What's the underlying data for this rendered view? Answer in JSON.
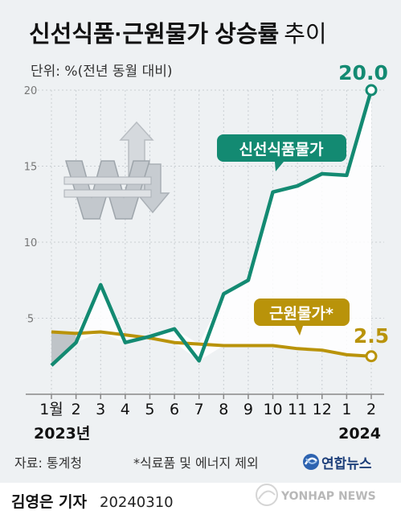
{
  "chart_data": {
    "type": "line",
    "title_main": "신선식품·근원물가 상승률",
    "title_sub": "추이",
    "unit": "단위: %(전년 동월 대비)",
    "categories": [
      "1월",
      "2",
      "3",
      "4",
      "5",
      "6",
      "7",
      "8",
      "9",
      "10",
      "11",
      "12",
      "1",
      "2"
    ],
    "year_labels": [
      "2023년",
      "2024"
    ],
    "ylim": [
      0,
      20
    ],
    "yticks": [
      "20",
      "15",
      "10",
      "5"
    ],
    "series": [
      {
        "name": "신선식품물가",
        "color": "#138a72",
        "end_label": "20.0",
        "values": [
          1.9,
          3.4,
          7.2,
          3.4,
          3.8,
          4.3,
          2.2,
          6.6,
          7.5,
          13.3,
          13.7,
          14.5,
          14.4,
          20.0
        ]
      },
      {
        "name": "근원물가*",
        "color": "#b9930a",
        "end_label": "2.5",
        "values": [
          4.1,
          4.0,
          4.1,
          3.9,
          3.7,
          3.4,
          3.3,
          3.2,
          3.2,
          3.2,
          3.0,
          2.9,
          2.6,
          2.5
        ]
      }
    ],
    "grid": true,
    "legend": "inline-callouts"
  },
  "footer": {
    "source": "자료: 통계청",
    "note": "*식료품 및 에너지 제외",
    "agency": "연합뉴스",
    "author": "김영은 기자",
    "date": "20240310",
    "watermark": "YONHAP NEWS"
  },
  "colors": {
    "background": "#eef1f3",
    "fresh": "#138a72",
    "core": "#b9930a",
    "grid": "#c9ced2"
  },
  "icons": [
    "won-arrows-icon",
    "yonhap-logo-icon"
  ]
}
